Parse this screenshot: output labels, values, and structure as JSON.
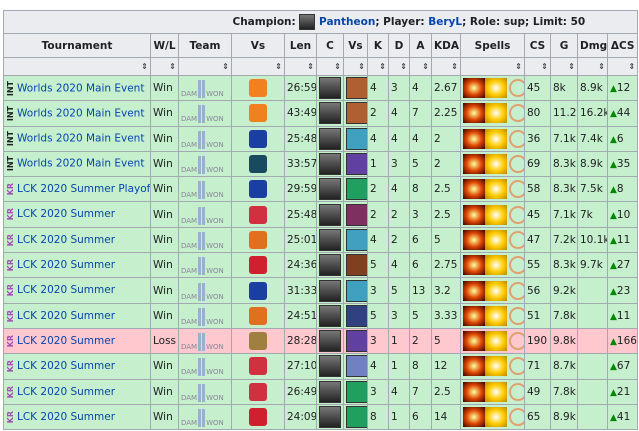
{
  "caption": {
    "champion_label": "Champion:",
    "champion": "Pantheon",
    "player_label": "; Player:",
    "player": "BeryL",
    "rest": "; Role: sup; Limit: 50"
  },
  "headers": [
    "Tournament",
    "W/L",
    "Team",
    "Vs",
    "Len",
    "C",
    "Vs",
    "K",
    "D",
    "A",
    "KDA",
    "Spells",
    "CS",
    "G",
    "Dmg",
    "ΔCS"
  ],
  "sort_icon": "⇕",
  "team_label": {
    "left": "DAM",
    "right": "WON"
  },
  "colors": {
    "win": "#c6efce",
    "loss": "#ffc7ce",
    "link": "#0645ad",
    "kr": "#a34eb5"
  },
  "rows": [
    {
      "region": "INT",
      "tournament": "Worlds 2020 Main Event",
      "wl": "Win",
      "vs_color": "#f08020",
      "len": "26:59",
      "vs_champ_color": "#b06030",
      "k": "4",
      "d": "3",
      "a": "4",
      "kda": "2.67",
      "cs": "45",
      "g": "8k",
      "dmg": "8.9k",
      "dcs": "12"
    },
    {
      "region": "INT",
      "tournament": "Worlds 2020 Main Event",
      "wl": "Win",
      "vs_color": "#f08020",
      "len": "43:49",
      "vs_champ_color": "#b06030",
      "k": "2",
      "d": "4",
      "a": "7",
      "kda": "2.25",
      "cs": "80",
      "g": "11.2k",
      "dmg": "16.2k",
      "dcs": "44"
    },
    {
      "region": "INT",
      "tournament": "Worlds 2020 Main Event",
      "wl": "Win",
      "vs_color": "#1a3fa0",
      "len": "25:48",
      "vs_champ_color": "#40a0c0",
      "k": "4",
      "d": "4",
      "a": "4",
      "kda": "2",
      "cs": "36",
      "g": "7.1k",
      "dmg": "7.4k",
      "dcs": "6"
    },
    {
      "region": "INT",
      "tournament": "Worlds 2020 Main Event",
      "wl": "Win",
      "vs_color": "#1a4a60",
      "len": "33:57",
      "vs_champ_color": "#6040a0",
      "k": "1",
      "d": "3",
      "a": "5",
      "kda": "2",
      "cs": "69",
      "g": "8.3k",
      "dmg": "8.9k",
      "dcs": "35"
    },
    {
      "region": "KR",
      "tournament": "LCK 2020 Summer Playoffs",
      "wl": "Win",
      "vs_color": "#1a3fa0",
      "len": "29:59",
      "vs_champ_color": "#20a060",
      "k": "2",
      "d": "4",
      "a": "8",
      "kda": "2.5",
      "cs": "58",
      "g": "8.3k",
      "dmg": "7.5k",
      "dcs": "8"
    },
    {
      "region": "KR",
      "tournament": "LCK 2020 Summer",
      "wl": "Win",
      "vs_color": "#d03040",
      "len": "25:48",
      "vs_champ_color": "#803060",
      "k": "2",
      "d": "2",
      "a": "3",
      "kda": "2.5",
      "cs": "45",
      "g": "7.1k",
      "dmg": "7k",
      "dcs": "10"
    },
    {
      "region": "KR",
      "tournament": "LCK 2020 Summer",
      "wl": "Win",
      "vs_color": "#e07020",
      "len": "25:01",
      "vs_champ_color": "#40a0c0",
      "k": "4",
      "d": "2",
      "a": "6",
      "kda": "5",
      "cs": "47",
      "g": "7.2k",
      "dmg": "10.1k",
      "dcs": "11"
    },
    {
      "region": "KR",
      "tournament": "LCK 2020 Summer",
      "wl": "Win",
      "vs_color": "#d02030",
      "len": "24:36",
      "vs_champ_color": "#804020",
      "k": "5",
      "d": "4",
      "a": "6",
      "kda": "2.75",
      "cs": "55",
      "g": "8.3k",
      "dmg": "9.7k",
      "dcs": "27"
    },
    {
      "region": "KR",
      "tournament": "LCK 2020 Summer",
      "wl": "Win",
      "vs_color": "#1a3fa0",
      "len": "31:33",
      "vs_champ_color": "#40a0c0",
      "k": "3",
      "d": "5",
      "a": "13",
      "kda": "3.2",
      "cs": "56",
      "g": "9.2k",
      "dmg": "",
      "dcs": "23"
    },
    {
      "region": "KR",
      "tournament": "LCK 2020 Summer",
      "wl": "Win",
      "vs_color": "#e07020",
      "len": "24:51",
      "vs_champ_color": "#304080",
      "k": "5",
      "d": "3",
      "a": "5",
      "kda": "3.33",
      "cs": "51",
      "g": "7.8k",
      "dmg": "",
      "dcs": "11"
    },
    {
      "region": "KR",
      "tournament": "LCK 2020 Summer",
      "wl": "Loss",
      "vs_color": "#a08040",
      "len": "28:28",
      "vs_champ_color": "#6040a0",
      "k": "3",
      "d": "1",
      "a": "2",
      "kda": "5",
      "cs": "190",
      "g": "9.8k",
      "dmg": "",
      "dcs": "166"
    },
    {
      "region": "KR",
      "tournament": "LCK 2020 Summer",
      "wl": "Win",
      "vs_color": "#d03040",
      "len": "27:10",
      "vs_champ_color": "#7080c0",
      "k": "4",
      "d": "1",
      "a": "8",
      "kda": "12",
      "cs": "71",
      "g": "8.7k",
      "dmg": "",
      "dcs": "67"
    },
    {
      "region": "KR",
      "tournament": "LCK 2020 Summer",
      "wl": "Win",
      "vs_color": "#d03040",
      "len": "26:49",
      "vs_champ_color": "#20a060",
      "k": "3",
      "d": "4",
      "a": "7",
      "kda": "2.5",
      "cs": "49",
      "g": "7.8k",
      "dmg": "",
      "dcs": "21"
    },
    {
      "region": "KR",
      "tournament": "LCK 2020 Summer",
      "wl": "Win",
      "vs_color": "#d02030",
      "len": "24:09",
      "vs_champ_color": "#20a060",
      "k": "8",
      "d": "1",
      "a": "6",
      "kda": "14",
      "cs": "65",
      "g": "8.9k",
      "dmg": "",
      "dcs": "41"
    }
  ]
}
